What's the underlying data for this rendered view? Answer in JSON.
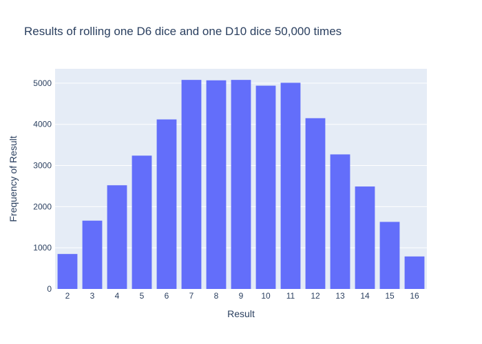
{
  "chart_data": {
    "type": "bar",
    "title": "Results of rolling one D6 dice and one D10 dice 50,000 times",
    "xlabel": "Result",
    "ylabel": "Frequency of Result",
    "categories": [
      "2",
      "3",
      "4",
      "5",
      "6",
      "7",
      "8",
      "9",
      "10",
      "11",
      "12",
      "13",
      "14",
      "15",
      "16"
    ],
    "values": [
      850,
      1660,
      2520,
      3240,
      4120,
      5080,
      5070,
      5080,
      4940,
      5010,
      4150,
      3270,
      2490,
      1630,
      790
    ],
    "ylim": [
      0,
      5350
    ],
    "yticks": [
      0,
      1000,
      2000,
      3000,
      4000,
      5000
    ],
    "ytick_labels": [
      "0",
      "1000",
      "2000",
      "3000",
      "4000",
      "5000"
    ],
    "grid": true,
    "colors": {
      "bar": "#636efa",
      "plot_bg": "#e5ecf6",
      "grid": "#ffffff",
      "text": "#2a3f5f"
    }
  }
}
